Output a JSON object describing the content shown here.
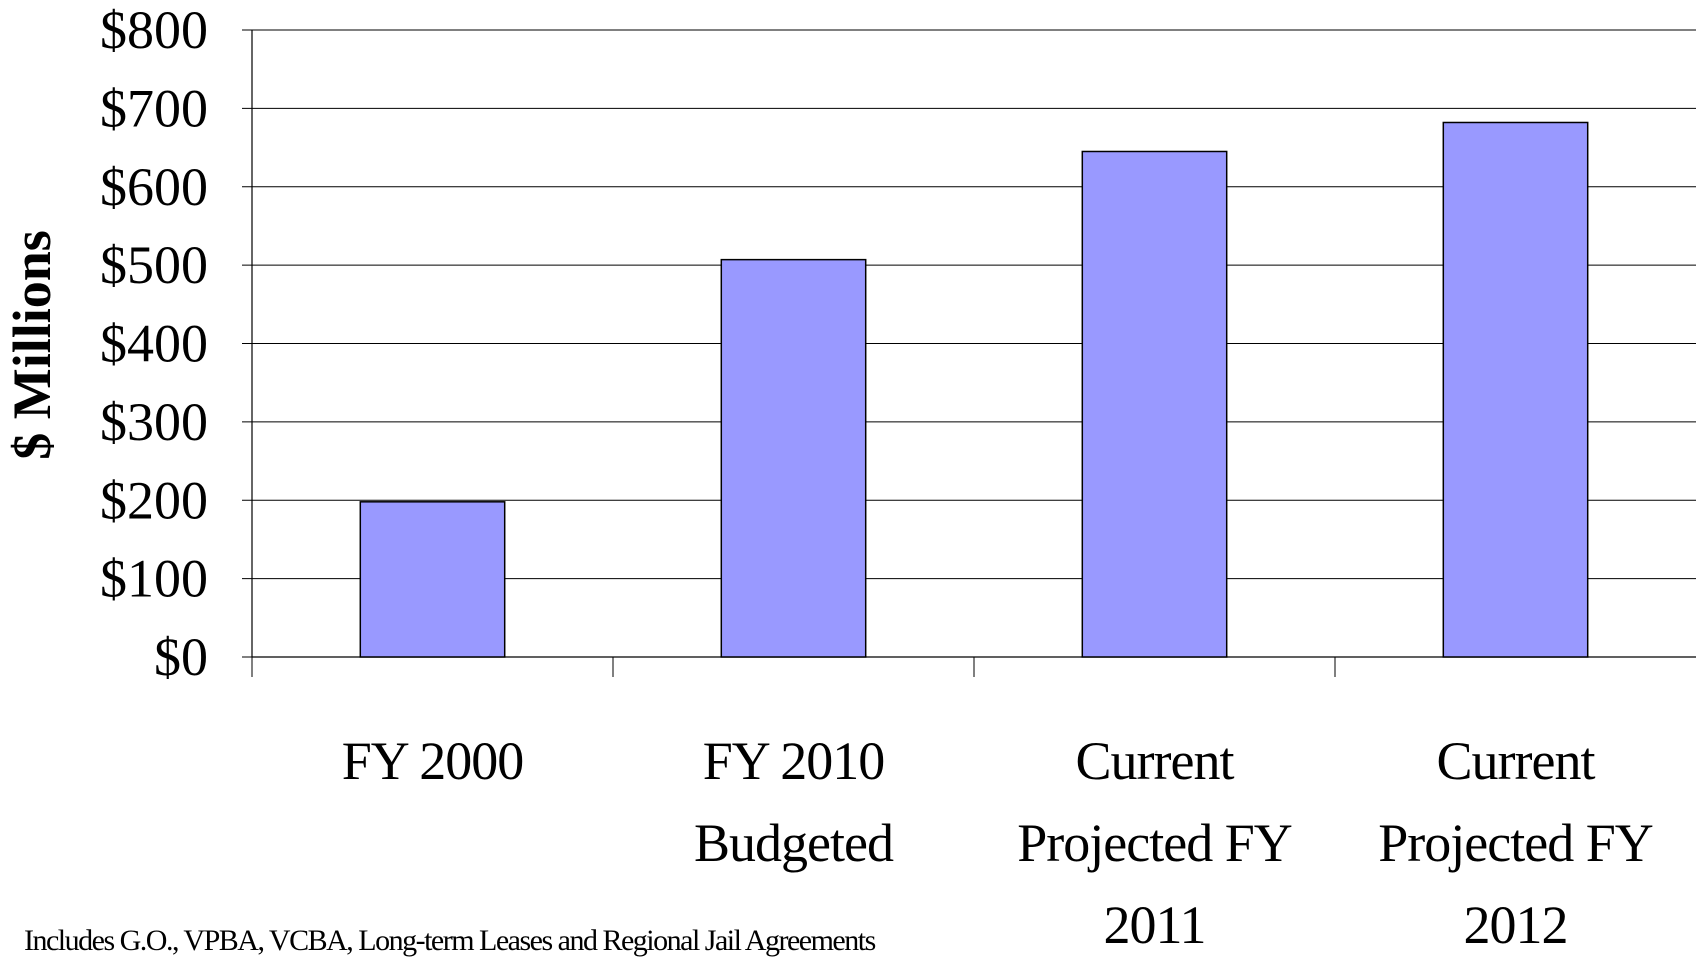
{
  "chart_data": {
    "type": "bar",
    "y_axis_label": "$ Millions",
    "categories": [
      "FY 2000",
      "FY 2010 Budgeted",
      "Current Projected FY 2011",
      "Current Projected FY 2012"
    ],
    "values": [
      198,
      507,
      645,
      682
    ],
    "color": "#9999ff",
    "ylim": [
      0,
      800
    ],
    "yticks": [
      {
        "value": 0,
        "label": "$0"
      },
      {
        "value": 100,
        "label": "$100"
      },
      {
        "value": 200,
        "label": "$200"
      },
      {
        "value": 300,
        "label": "$300"
      },
      {
        "value": 400,
        "label": "$400"
      },
      {
        "value": 500,
        "label": "$500"
      },
      {
        "value": 600,
        "label": "$600"
      },
      {
        "value": 700,
        "label": "$700"
      },
      {
        "value": 800,
        "label": "$800"
      }
    ],
    "grid": true,
    "footnote": "Includes G.O., VPBA, VCBA, Long-term Leases and Regional Jail Agreements"
  }
}
